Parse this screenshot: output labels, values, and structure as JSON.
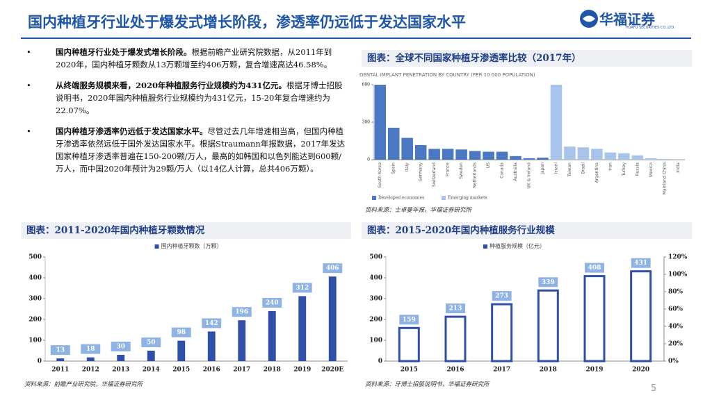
{
  "header": {
    "title": "国内种植牙行业处于爆发式增长阶段，渗透率仍远低于发达国家水平",
    "logo_name": "华福证券",
    "logo_sub": "HUAFU SECURITIES CO.,LTD."
  },
  "bullets": [
    {
      "bold": "国内种植牙行业处于爆发式增长阶段。",
      "text": "根据前瞻产业研究院数据，从2011年到2020年，国内种植牙颗数从13万颗增至约406万颗，复合增速高达46.58%。"
    },
    {
      "bold": "从终端服务规模来看，2020年种植服务行业规模约为431亿元。",
      "text": "根据牙博士招股说明书，2020年国内种植服务行业规模约为431亿元，15-20年复合增速约为22.07%。"
    },
    {
      "bold": "国内种植牙渗透率仍远低于发达国家水平。",
      "text": "尽管过去几年增速相当高，但国内种植牙渗透率依然远低于国外发达国家水平。根据Straumann年报数据，2017年发达国家种植牙渗透率普遍在150-200颗/万人，最高的如韩国和以色列能达到600颗/万人，而中国2020年预计为29颗/万人（以14亿人计算，总共406万颗）。"
    }
  ],
  "figures": [
    {
      "caption": "图表：全球不同国家种植牙渗透率比较（2017年）",
      "source": "资料来源：士卓曼年报，华福证券研究所"
    },
    {
      "caption": "图表：2011-2020年国内种植牙颗数情况",
      "source": "资料来源：前瞻产业研究院，华福证券研究所"
    },
    {
      "caption": "图表：2015-2020年国内种植服务行业规模",
      "source": "资料来源：牙博士招股说明书，华福证券研究所"
    }
  ],
  "page_number": "5",
  "chart_data": [
    {
      "type": "bar",
      "title": "DENTAL IMPLANT PENETRATION BY COUNTRY (PER 10 000 POPULATION)",
      "categories": [
        "South Korea",
        "Spain",
        "Italy",
        "Germany",
        "Switzerland",
        "France",
        "Sweden",
        "Netherlands",
        "US",
        "Canada",
        "Australia",
        "UK & Ireland",
        "Japan",
        "Israel",
        "Taiwan",
        "Brazil",
        "Argentina",
        "Iran",
        "Turkey",
        "Russia",
        "Mexico",
        "Mainland China",
        "India"
      ],
      "series": [
        {
          "name": "Developed economies",
          "color": "#4a78c2",
          "values": [
            600,
            256,
            175,
            117,
            87,
            87,
            82,
            70,
            64,
            64,
            29,
            12,
            17,
            null,
            null,
            null,
            null,
            null,
            null,
            null,
            null,
            null,
            null
          ]
        },
        {
          "name": "Emerging markets",
          "color": "#a9c4ea",
          "values": [
            null,
            null,
            null,
            null,
            null,
            null,
            null,
            null,
            null,
            null,
            null,
            null,
            null,
            600,
            105,
            99,
            87,
            58,
            52,
            35,
            12,
            6,
            1
          ]
        }
      ],
      "ylim": [
        0,
        600
      ],
      "yticks": [
        0,
        300,
        600
      ],
      "grid": false
    },
    {
      "type": "bar",
      "categories": [
        "2011",
        "2012",
        "2013",
        "2014",
        "2015",
        "2016",
        "2017",
        "2018",
        "2019",
        "2020E"
      ],
      "series": [
        {
          "name": "国内种植牙颗数（万颗）",
          "color": "#2f4fa8",
          "values": [
            13,
            18,
            30,
            50,
            98,
            142,
            196,
            240,
            312,
            406
          ]
        }
      ],
      "ylim": [
        0,
        500
      ],
      "yticks": [
        0,
        100,
        200,
        300,
        400,
        500
      ],
      "grid": false
    },
    {
      "type": "bar",
      "categories": [
        "2015",
        "2016",
        "2017",
        "2018",
        "2019",
        "2020"
      ],
      "series": [
        {
          "name": "种植服务规模（亿元）",
          "color": "#2f4fa8",
          "values": [
            159,
            213,
            273,
            339,
            408,
            431
          ]
        }
      ],
      "ylim": [
        0,
        500
      ],
      "yticks": [
        0,
        100,
        200,
        300,
        400,
        500
      ],
      "y2lim": [
        0,
        120
      ],
      "y2ticks": [
        {
          "value": 0,
          "label": "0%"
        },
        {
          "value": 20,
          "label": "20%"
        },
        {
          "value": 40,
          "label": "40%"
        },
        {
          "value": 60,
          "label": "60%"
        },
        {
          "value": 80,
          "label": "80%"
        },
        {
          "value": 100,
          "label": "100%"
        },
        {
          "value": 120,
          "label": "120%"
        }
      ],
      "grid": false
    }
  ]
}
